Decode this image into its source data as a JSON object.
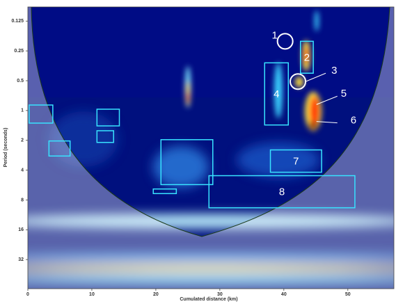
{
  "chart_data": {
    "type": "scalogram",
    "xlabel": "Cumulated distance (km)",
    "ylabel": "Period (seconds)",
    "xlim": [
      0,
      57.2
    ],
    "xticks": [
      0,
      10,
      20,
      30,
      40,
      50
    ],
    "ylim": [
      0.09,
      63
    ],
    "yticks": [
      0.125,
      0.25,
      0.5,
      1,
      2,
      4,
      8,
      16,
      32
    ],
    "y_scale": "log",
    "y_inverted": true,
    "region_color": "#38e3ff",
    "marker_color": "#ffffff",
    "regions": [
      {
        "x": [
          0.2,
          3.9
        ],
        "y": [
          0.88,
          1.34
        ]
      },
      {
        "x": [
          3.3,
          6.6
        ],
        "y": [
          2.03,
          2.88
        ]
      },
      {
        "x": [
          10.8,
          14.3
        ],
        "y": [
          0.97,
          1.43
        ]
      },
      {
        "x": [
          10.8,
          13.4
        ],
        "y": [
          1.6,
          2.1
        ]
      },
      {
        "x": [
          20.8,
          28.9
        ],
        "y": [
          1.97,
          5.6
        ]
      },
      {
        "x": [
          19.6,
          23.2
        ],
        "y": [
          6.2,
          6.9
        ]
      },
      {
        "x": [
          42.6,
          44.6
        ],
        "y": [
          0.2,
          0.42
        ],
        "label": "2"
      },
      {
        "x": [
          37.0,
          40.7
        ],
        "y": [
          0.33,
          1.4
        ],
        "label": "4"
      },
      {
        "x": [
          37.9,
          45.9
        ],
        "y": [
          2.5,
          4.2
        ],
        "label": "7"
      },
      {
        "x": [
          28.3,
          51.1
        ],
        "y": [
          4.55,
          9.6
        ],
        "label": "8"
      }
    ],
    "markers": [
      {
        "shape": "circle",
        "x": 40.2,
        "y": 0.2,
        "label": "1"
      },
      {
        "shape": "circle",
        "x": 42.2,
        "y": 0.51,
        "label": "3"
      },
      {
        "shape": "pointer",
        "x": 45.1,
        "y": 0.87,
        "label": "5"
      },
      {
        "shape": "pointer",
        "x": 45.1,
        "y": 1.29,
        "label": "6"
      }
    ]
  }
}
